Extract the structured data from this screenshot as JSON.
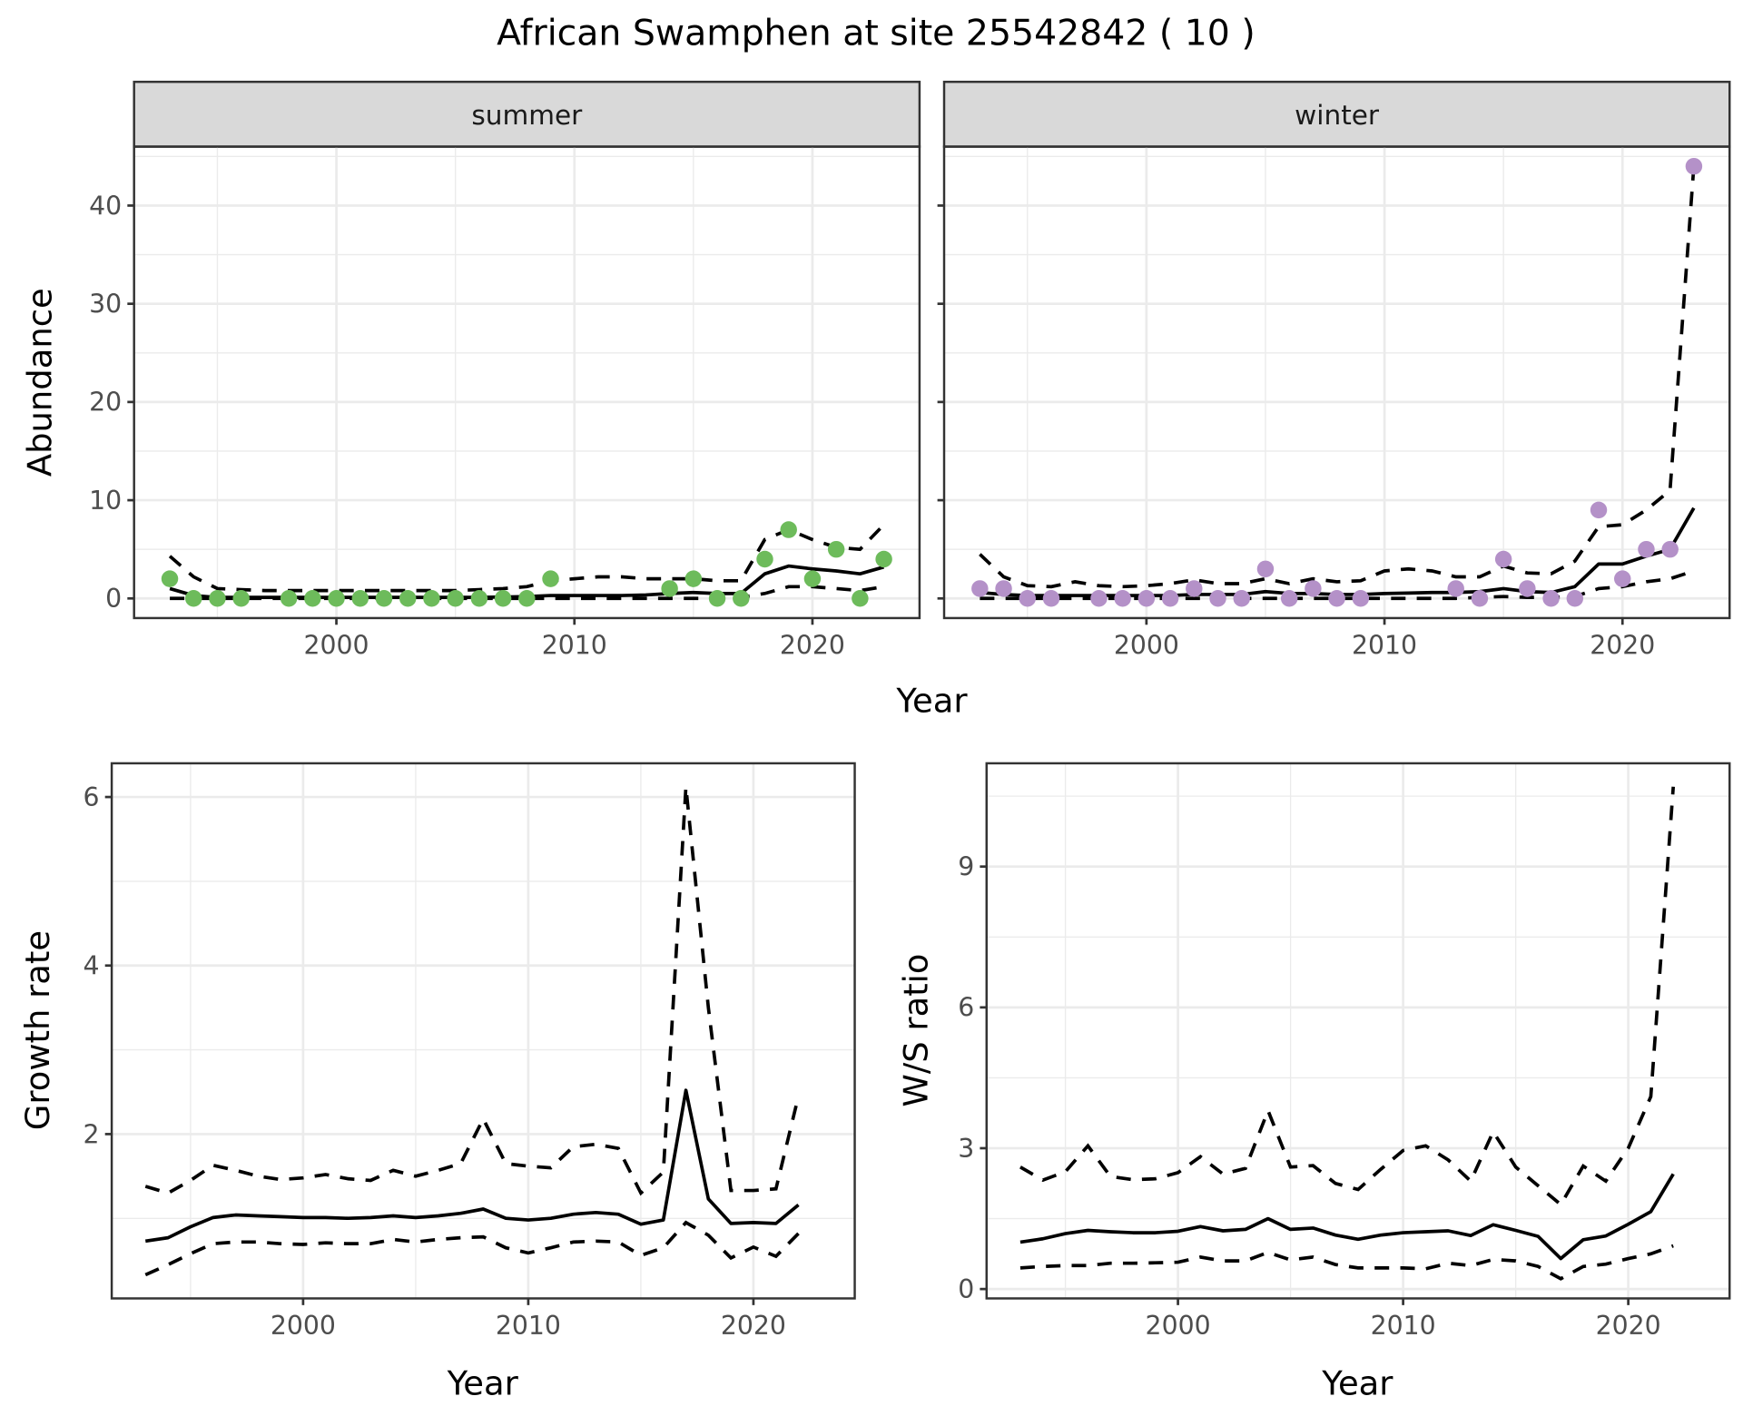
{
  "title": "African Swamphen at site 25542842 ( 10 )",
  "chart_data": [
    {
      "id": "abundance",
      "type": "scatter",
      "facets": [
        "summer",
        "winter"
      ],
      "xlabel": "Year",
      "ylabel": "Abundance",
      "xlim": [
        1991.5,
        2024.5
      ],
      "ylim": [
        -2,
        46
      ],
      "xticks": [
        2000,
        2010,
        2020
      ],
      "yticks": [
        0,
        10,
        20,
        30,
        40
      ],
      "grid": true,
      "series": [
        {
          "name": "summer",
          "color": "#6dbb5b",
          "points": {
            "x": [
              1993,
              1994,
              1995,
              1996,
              1998,
              1999,
              2000,
              2001,
              2002,
              2003,
              2004,
              2005,
              2006,
              2007,
              2008,
              2009,
              2014,
              2015,
              2016,
              2017,
              2018,
              2019,
              2020,
              2021,
              2022,
              2023
            ],
            "y": [
              2,
              0,
              0,
              0,
              0,
              0,
              0,
              0,
              0,
              0,
              0,
              0,
              0,
              0,
              0,
              2,
              1,
              2,
              0,
              0,
              4,
              7,
              2,
              5,
              0,
              4
            ]
          },
          "years": [
            1993,
            1994,
            1995,
            1996,
            1997,
            1998,
            1999,
            2000,
            2001,
            2002,
            2003,
            2004,
            2005,
            2006,
            2007,
            2008,
            2009,
            2010,
            2011,
            2012,
            2013,
            2014,
            2015,
            2016,
            2017,
            2018,
            2019,
            2020,
            2021,
            2022,
            2023
          ],
          "mean": [
            1.0,
            0.3,
            0.1,
            0.1,
            0.1,
            0.1,
            0.1,
            0.1,
            0.1,
            0.1,
            0.1,
            0.1,
            0.1,
            0.1,
            0.15,
            0.2,
            0.3,
            0.3,
            0.3,
            0.3,
            0.35,
            0.5,
            0.6,
            0.5,
            0.5,
            2.5,
            3.3,
            3.0,
            2.8,
            2.5,
            3.2
          ],
          "upper": [
            4.3,
            2.2,
            1.0,
            0.9,
            0.8,
            0.8,
            0.8,
            0.8,
            0.8,
            0.8,
            0.8,
            0.8,
            0.8,
            0.9,
            1.0,
            1.2,
            1.8,
            2.0,
            2.2,
            2.2,
            2.0,
            2.0,
            2.0,
            1.8,
            1.8,
            6.0,
            7.0,
            6.0,
            5.2,
            5.0,
            7.5
          ],
          "lower": [
            0,
            0,
            0,
            0,
            0,
            0,
            0,
            0,
            0,
            0,
            0,
            0,
            0,
            0,
            0,
            0,
            0,
            0,
            0,
            0,
            0,
            0,
            0,
            0,
            0.1,
            0.5,
            1.2,
            1.2,
            1.0,
            0.8,
            1.2
          ]
        },
        {
          "name": "winter",
          "color": "#b491c8",
          "points": {
            "x": [
              1993,
              1994,
              1995,
              1996,
              1998,
              1999,
              2000,
              2001,
              2002,
              2003,
              2004,
              2005,
              2006,
              2007,
              2008,
              2009,
              2013,
              2014,
              2015,
              2016,
              2017,
              2018,
              2019,
              2020,
              2021,
              2022,
              2023
            ],
            "y": [
              1,
              1,
              0,
              0,
              0,
              0,
              0,
              0,
              1,
              0,
              0,
              3,
              0,
              1,
              0,
              0,
              1,
              0,
              4,
              1,
              0,
              0,
              9,
              2,
              5,
              5,
              44
            ]
          },
          "years": [
            1993,
            1994,
            1995,
            1996,
            1997,
            1998,
            1999,
            2000,
            2001,
            2002,
            2003,
            2004,
            2005,
            2006,
            2007,
            2008,
            2009,
            2010,
            2011,
            2012,
            2013,
            2014,
            2015,
            2016,
            2017,
            2018,
            2019,
            2020,
            2021,
            2022,
            2023
          ],
          "mean": [
            0.6,
            0.4,
            0.3,
            0.3,
            0.3,
            0.3,
            0.3,
            0.3,
            0.3,
            0.4,
            0.4,
            0.4,
            0.7,
            0.5,
            0.5,
            0.4,
            0.4,
            0.5,
            0.55,
            0.6,
            0.6,
            0.7,
            1.0,
            0.7,
            0.6,
            1.2,
            3.5,
            3.5,
            4.3,
            5.0,
            9.2
          ],
          "upper": [
            4.5,
            2.2,
            1.3,
            1.2,
            1.7,
            1.3,
            1.2,
            1.3,
            1.5,
            1.9,
            1.5,
            1.5,
            2.0,
            1.5,
            2.0,
            1.7,
            1.8,
            2.8,
            3.0,
            2.8,
            2.2,
            2.2,
            3.3,
            2.6,
            2.5,
            3.8,
            7.3,
            7.5,
            9.0,
            11.0,
            44.0
          ],
          "lower": [
            0,
            0,
            0,
            0,
            0,
            0,
            0,
            0,
            0,
            0,
            0,
            0,
            0,
            0,
            0,
            0,
            0,
            0,
            0,
            0,
            0,
            0.1,
            0.2,
            0.1,
            0.1,
            0.2,
            1.0,
            1.2,
            1.7,
            2.0,
            2.8
          ]
        }
      ]
    },
    {
      "id": "growth",
      "type": "line",
      "xlabel": "Year",
      "ylabel": "Growth rate",
      "xlim": [
        1991.5,
        2024.5
      ],
      "ylim": [
        0.05,
        6.4
      ],
      "xticks": [
        2000,
        2010,
        2020
      ],
      "yticks": [
        2,
        4,
        6
      ],
      "grid": true,
      "x": [
        1993,
        1994,
        1995,
        1996,
        1997,
        1998,
        1999,
        2000,
        2001,
        2002,
        2003,
        2004,
        2005,
        2006,
        2007,
        2008,
        2009,
        2010,
        2011,
        2012,
        2013,
        2014,
        2015,
        2016,
        2017,
        2018,
        2019,
        2020,
        2021,
        2022
      ],
      "series": [
        {
          "name": "mean",
          "style": "solid",
          "values": [
            0.73,
            0.77,
            0.9,
            1.01,
            1.04,
            1.03,
            1.02,
            1.01,
            1.01,
            1.0,
            1.01,
            1.03,
            1.01,
            1.03,
            1.06,
            1.11,
            1.0,
            0.98,
            1.0,
            1.05,
            1.07,
            1.05,
            0.93,
            0.98,
            2.52,
            1.23,
            0.94,
            0.95,
            0.94,
            1.16
          ]
        },
        {
          "name": "upper",
          "style": "dashed",
          "values": [
            1.38,
            1.3,
            1.45,
            1.63,
            1.57,
            1.5,
            1.46,
            1.48,
            1.52,
            1.47,
            1.45,
            1.57,
            1.5,
            1.57,
            1.65,
            2.18,
            1.65,
            1.62,
            1.6,
            1.85,
            1.88,
            1.83,
            1.3,
            1.55,
            6.12,
            3.5,
            1.33,
            1.33,
            1.35,
            2.45
          ]
        },
        {
          "name": "lower",
          "style": "dashed",
          "values": [
            0.33,
            0.45,
            0.58,
            0.7,
            0.72,
            0.72,
            0.7,
            0.69,
            0.71,
            0.7,
            0.7,
            0.75,
            0.72,
            0.75,
            0.77,
            0.78,
            0.65,
            0.59,
            0.65,
            0.72,
            0.73,
            0.72,
            0.56,
            0.65,
            0.95,
            0.8,
            0.53,
            0.66,
            0.55,
            0.82
          ]
        }
      ]
    },
    {
      "id": "ws",
      "type": "line",
      "xlabel": "Year",
      "ylabel": "W/S ratio",
      "xlim": [
        1991.5,
        2024.5
      ],
      "ylim": [
        -0.2,
        11.2
      ],
      "xticks": [
        2000,
        2010,
        2020
      ],
      "yticks": [
        0,
        3,
        6,
        9
      ],
      "grid": true,
      "x": [
        1993,
        1994,
        1995,
        1996,
        1997,
        1998,
        1999,
        2000,
        2001,
        2002,
        2003,
        2004,
        2005,
        2006,
        2007,
        2008,
        2009,
        2010,
        2011,
        2012,
        2013,
        2014,
        2015,
        2016,
        2017,
        2018,
        2019,
        2020,
        2021,
        2022
      ],
      "series": [
        {
          "name": "mean",
          "style": "solid",
          "values": [
            1.0,
            1.07,
            1.18,
            1.25,
            1.22,
            1.2,
            1.2,
            1.23,
            1.33,
            1.24,
            1.27,
            1.5,
            1.27,
            1.3,
            1.15,
            1.06,
            1.15,
            1.2,
            1.22,
            1.24,
            1.14,
            1.37,
            1.25,
            1.12,
            0.65,
            1.05,
            1.13,
            1.38,
            1.65,
            2.45
          ]
        },
        {
          "name": "upper",
          "style": "dashed",
          "values": [
            2.6,
            2.32,
            2.5,
            3.05,
            2.4,
            2.33,
            2.35,
            2.48,
            2.82,
            2.45,
            2.57,
            3.8,
            2.6,
            2.63,
            2.25,
            2.12,
            2.55,
            2.95,
            3.05,
            2.75,
            2.3,
            3.35,
            2.6,
            2.2,
            1.8,
            2.62,
            2.3,
            3.0,
            4.1,
            10.7
          ]
        },
        {
          "name": "lower",
          "style": "dashed",
          "values": [
            0.45,
            0.48,
            0.5,
            0.5,
            0.55,
            0.55,
            0.56,
            0.57,
            0.68,
            0.6,
            0.6,
            0.78,
            0.62,
            0.68,
            0.52,
            0.45,
            0.45,
            0.45,
            0.43,
            0.55,
            0.5,
            0.63,
            0.6,
            0.48,
            0.22,
            0.48,
            0.53,
            0.65,
            0.75,
            0.92
          ]
        }
      ]
    }
  ]
}
